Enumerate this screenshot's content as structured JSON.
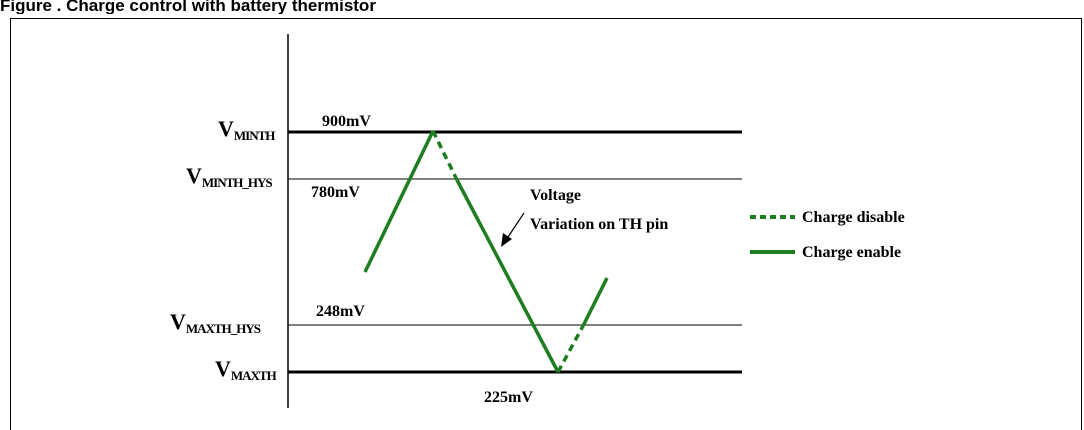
{
  "figure": {
    "caption": "Figure    . Charge control with battery thermistor"
  },
  "levels": [
    {
      "key": "vminth",
      "label_main": "V",
      "label_sub": "MINTH",
      "value": "900mV"
    },
    {
      "key": "vminth_hys",
      "label_main": "V",
      "label_sub": "MINTH_HYS",
      "value": "780mV"
    },
    {
      "key": "vmaxth_hys",
      "label_main": "V",
      "label_sub": "MAXTH_HYS",
      "value": "248mV"
    },
    {
      "key": "vmaxth",
      "label_main": "V",
      "label_sub": "MAXTH",
      "value": "225mV"
    }
  ],
  "annotation": {
    "line1": "Voltage",
    "line2": "Variation on TH pin"
  },
  "legend": [
    {
      "label": "Charge disable",
      "style": "dashed",
      "color": "#1e7d1e"
    },
    {
      "label": "Charge enable",
      "style": "solid",
      "color": "#1e7d1e"
    }
  ],
  "colors": {
    "trace": "#1e7d1e",
    "lines": "#000000"
  }
}
